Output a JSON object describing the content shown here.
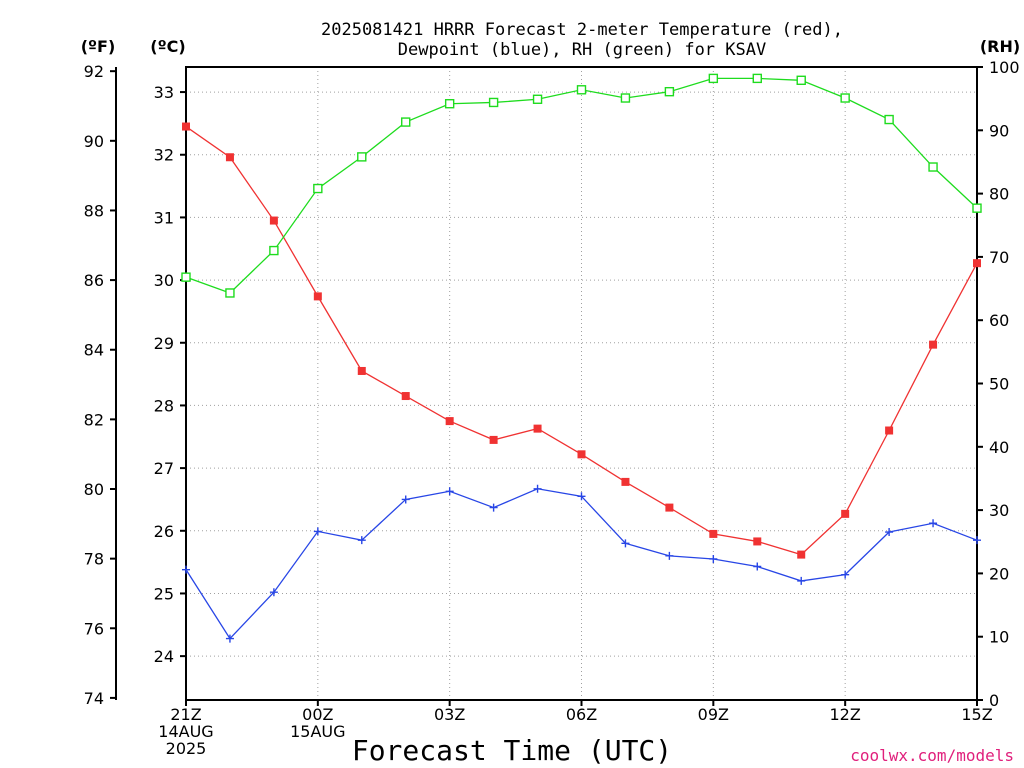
{
  "title": {
    "line1": "2025081421 HRRR Forecast 2-meter Temperature (red),",
    "line2": "Dewpoint (blue), RH (green) for KSAV"
  },
  "axis_units": {
    "fahrenheit": "(ºF)",
    "celsius": "(ºC)",
    "rh": "(RH)"
  },
  "xlabel": "Forecast Time (UTC)",
  "credit": "coolwx.com/models",
  "colors": {
    "temperature": "#f03232",
    "dewpoint": "#2846e6",
    "rh": "#1edc1e",
    "grid": "#a0a0a0"
  },
  "chart_data": {
    "type": "line",
    "x": [
      "21Z",
      "22Z",
      "23Z",
      "00Z",
      "01Z",
      "02Z",
      "03Z",
      "04Z",
      "05Z",
      "06Z",
      "07Z",
      "08Z",
      "09Z",
      "10Z",
      "11Z",
      "12Z",
      "13Z",
      "14Z",
      "15Z"
    ],
    "x_tick_labels": [
      {
        "hour": "21Z",
        "lines": [
          "21Z",
          "14AUG",
          "2025"
        ]
      },
      {
        "hour": "00Z",
        "lines": [
          "00Z",
          "15AUG"
        ]
      },
      {
        "hour": "03Z",
        "lines": [
          "03Z"
        ]
      },
      {
        "hour": "06Z",
        "lines": [
          "06Z"
        ]
      },
      {
        "hour": "09Z",
        "lines": [
          "09Z"
        ]
      },
      {
        "hour": "12Z",
        "lines": [
          "12Z"
        ]
      },
      {
        "hour": "15Z",
        "lines": [
          "15Z"
        ]
      }
    ],
    "series": [
      {
        "name": "Temperature",
        "key": "temperature",
        "unit": "C",
        "axis": "celsius",
        "marker": "filled-square",
        "values": [
          32.45,
          31.96,
          30.95,
          29.74,
          28.55,
          28.15,
          27.75,
          27.45,
          27.63,
          27.22,
          26.78,
          26.37,
          25.95,
          25.83,
          25.62,
          26.27,
          27.6,
          28.97,
          30.27
        ]
      },
      {
        "name": "Dewpoint",
        "key": "dewpoint",
        "unit": "C",
        "axis": "celsius",
        "marker": "plus",
        "values": [
          25.38,
          24.28,
          25.02,
          25.99,
          25.85,
          26.5,
          26.63,
          26.37,
          26.67,
          26.55,
          25.8,
          25.6,
          25.55,
          25.43,
          25.2,
          25.3,
          25.98,
          26.12,
          25.85
        ]
      },
      {
        "name": "RH",
        "key": "rh",
        "unit": "%",
        "axis": "rh",
        "marker": "open-square",
        "values": [
          66.8,
          64.3,
          71.0,
          80.8,
          85.8,
          91.3,
          94.2,
          94.4,
          94.9,
          96.4,
          95.1,
          96.1,
          98.2,
          98.2,
          97.9,
          95.1,
          91.7,
          84.2,
          77.7
        ]
      }
    ],
    "axes": {
      "celsius": {
        "ylim": [
          23.3,
          33.4
        ],
        "ticks": [
          24,
          25,
          26,
          27,
          28,
          29,
          30,
          31,
          32,
          33
        ],
        "position": "left-inner"
      },
      "fahrenheit": {
        "ylim": [
          73.94,
          92.12
        ],
        "ticks": [
          74,
          76,
          78,
          80,
          82,
          84,
          86,
          88,
          90,
          92
        ],
        "position": "left-outer"
      },
      "rh": {
        "ylim": [
          0,
          100
        ],
        "ticks": [
          0,
          10,
          20,
          30,
          40,
          50,
          60,
          70,
          80,
          90,
          100
        ],
        "position": "right"
      }
    },
    "grid": true
  }
}
